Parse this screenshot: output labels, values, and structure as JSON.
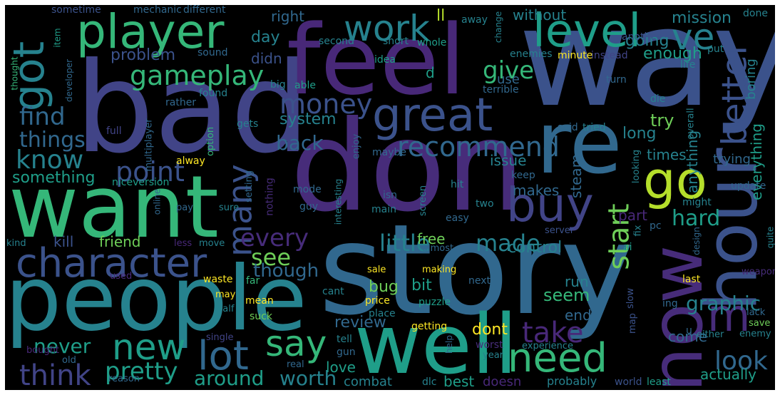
{
  "palette": {
    "purple": "#472c7a",
    "indigo": "#3b528b",
    "blue": "#31688e",
    "teal": "#26828e",
    "green": "#1f9e89",
    "mint": "#35b779",
    "lime": "#6ece58",
    "yellowgreen": "#b5de2b",
    "yellow": "#fde725",
    "darkblue": "#414487",
    "deepviolet": "#482878"
  },
  "words": {
    "way": "way",
    "bad": "bad",
    "feel": "feel",
    "don": "don",
    "story": "story",
    "people": "people",
    "want": "want",
    "well": "well",
    "re": "re",
    "hour": "hour",
    "now": "now",
    "level": "level",
    "player": "player",
    "got": "got",
    "great": "great",
    "buy": "buy",
    "character": "character",
    "go": "go",
    "better": "better",
    "work": "work",
    "ve": "ve",
    "m": "m",
    "need": "need",
    "lot": "lot",
    "new": "new",
    "say": "say",
    "take": "take",
    "gameplay": "gameplay",
    "many": "many",
    "recommend": "recommend",
    "money": "money",
    "point": "point",
    "think": "think",
    "pretty": "pretty",
    "know": "know",
    "find": "find",
    "things": "things",
    "start": "start",
    "look": "look",
    "every": "every",
    "made": "made",
    "little": "little",
    "see": "see",
    "hard": "hard",
    "give": "give",
    "back": "back",
    "graphic": "graphic",
    "worth": "worth",
    "around": "around",
    "never": "never",
    "though": "though",
    "system": "system",
    "something": "something",
    "going": "going",
    "enough": "enough",
    "mission": "mission",
    "without": "without",
    "right": "right",
    "day": "day",
    "didn": "didn",
    "problem": "problem",
    "ll": "ll",
    "try": "try",
    "long": "long",
    "times": "times",
    "issue": "issue",
    "makes": "makes",
    "steam": "steam",
    "anything": "anything",
    "everything": "everything",
    "boring": "boring",
    "trying": "trying",
    "part": "part",
    "friend": "friend",
    "kill": "kill",
    "free": "free",
    "control": "control",
    "bit": "bit",
    "bug": "bug",
    "seem": "seem",
    "run": "run",
    "end": "end",
    "review": "review",
    "dont": "dont",
    "love": "love",
    "come": "come",
    "actually": "actually",
    "combat": "combat",
    "best": "best",
    "doesn": "doesn",
    "probably": "probably",
    "least": "least",
    "world": "world",
    "use": "use",
    "sometime": "sometime",
    "mechanic": "mechanic",
    "different": "different",
    "away": "away",
    "change": "change",
    "done": "done",
    "item": "item",
    "thought": "thought",
    "second": "second",
    "short": "short",
    "whole": "whole",
    "another": "another",
    "put": "put",
    "sound": "sound",
    "enemies": "enemies",
    "minute": "minute",
    "instead": "instead",
    "life": "life",
    "idea": "idea",
    "d": "d",
    "developer": "developer",
    "big": "big",
    "able": "able",
    "turn": "turn",
    "found": "found",
    "terrible": "terrible",
    "die": "die",
    "rather": "rather",
    "full": "full",
    "gets": "gets",
    "said": "said",
    "tried": "tried",
    "overall": "overall",
    "option": "option",
    "enjoy": "enjoy",
    "maybe": "maybe",
    "multiplayer": "multiplayer",
    "alway": "alway",
    "keep": "keep",
    "looking": "looking",
    "screen": "screen",
    "niceversion": "niceversion",
    "setting": "setting",
    "hit": "hit",
    "update": "update",
    "nothing": "nothing",
    "mode": "mode",
    "isn": "isn",
    "might": "might",
    "interesting": "interesting",
    "two": "two",
    "pay": "pay",
    "sure": "sure",
    "guy": "guy",
    "main": "main",
    "online": "online",
    "easy": "easy",
    "pc": "pc",
    "fix": "fix",
    "ai": "ai",
    "kind": "kind",
    "less": "less",
    "move": "move",
    "almost": "almost",
    "server": "server",
    "design": "design",
    "quite": "quite",
    "used": "used",
    "making": "making",
    "sale": "sale",
    "weapon": "weapon",
    "last": "last",
    "waste": "waste",
    "far": "far",
    "next": "next",
    "may": "may",
    "mean": "mean",
    "price": "price",
    "cant": "cant",
    "puzzle": "puzzle",
    "slow": "slow",
    "ing": "ing",
    "lack": "lack",
    "half": "half",
    "suck": "suck",
    "place": "place",
    "save": "save",
    "u": "u",
    "enemy": "enemy",
    "getting": "getting",
    "map": "map",
    "either": "either",
    "single": "single",
    "tell": "tell",
    "gun": "gun",
    "worst": "worst",
    "help": "help",
    "experience": "experience",
    "year": "year",
    "bought": "bought",
    "old": "old",
    "reason": "reason",
    "real": "real",
    "dlc": "dlc"
  }
}
